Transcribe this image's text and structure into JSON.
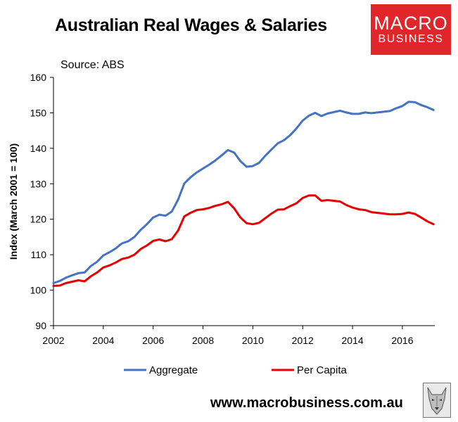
{
  "header": {
    "title": "Australian Real Wages & Salaries",
    "source": "Source: ABS",
    "logo_line1": "MACRO",
    "logo_line2": "BUSINESS"
  },
  "footer": {
    "website": "www.macrobusiness.com.au",
    "mascot_icon": "wolf-icon"
  },
  "colors": {
    "aggregate": "#4472c4",
    "per_capita": "#e60000",
    "logo_bg": "#e0262b"
  },
  "chart_data": {
    "type": "line",
    "title": "Australian Real Wages & Salaries",
    "xlabel": "",
    "ylabel": "Index (March 2001 = 100)",
    "xlim": [
      2002,
      2017.3
    ],
    "ylim": [
      90,
      160
    ],
    "xticks": [
      2002,
      2004,
      2006,
      2008,
      2010,
      2012,
      2014,
      2016
    ],
    "yticks": [
      90,
      100,
      110,
      120,
      130,
      140,
      150,
      160
    ],
    "grid": false,
    "legend_position": "bottom",
    "series": [
      {
        "name": "Aggregate",
        "color": "#4472c4",
        "x": [
          2002.0,
          2002.25,
          2002.5,
          2002.75,
          2003.0,
          2003.25,
          2003.5,
          2003.75,
          2004.0,
          2004.25,
          2004.5,
          2004.75,
          2005.0,
          2005.25,
          2005.5,
          2005.75,
          2006.0,
          2006.25,
          2006.5,
          2006.75,
          2007.0,
          2007.25,
          2007.5,
          2007.75,
          2008.0,
          2008.25,
          2008.5,
          2008.75,
          2009.0,
          2009.25,
          2009.5,
          2009.75,
          2010.0,
          2010.25,
          2010.5,
          2010.75,
          2011.0,
          2011.25,
          2011.5,
          2011.75,
          2012.0,
          2012.25,
          2012.5,
          2012.75,
          2013.0,
          2013.25,
          2013.5,
          2013.75,
          2014.0,
          2014.25,
          2014.5,
          2014.75,
          2015.0,
          2015.25,
          2015.5,
          2015.75,
          2016.0,
          2016.25,
          2016.5,
          2016.75,
          2017.0,
          2017.25
        ],
        "values": [
          102.0,
          102.6,
          103.5,
          104.2,
          104.8,
          105.0,
          106.8,
          108.0,
          109.8,
          110.7,
          111.8,
          113.2,
          113.8,
          115.0,
          117.0,
          118.6,
          120.5,
          121.3,
          121.0,
          122.2,
          125.5,
          130.1,
          131.8,
          133.2,
          134.3,
          135.4,
          136.6,
          138.0,
          139.5,
          138.8,
          136.4,
          134.8,
          135.0,
          135.9,
          137.9,
          139.7,
          141.4,
          142.3,
          143.7,
          145.6,
          147.8,
          149.2,
          150.0,
          149.1,
          149.8,
          150.2,
          150.6,
          150.1,
          149.7,
          149.7,
          150.1,
          149.9,
          150.1,
          150.3,
          150.5,
          151.3,
          151.9,
          153.1,
          153.0,
          152.2,
          151.6,
          150.8
        ]
      },
      {
        "name": "Per Capita",
        "color": "#e60000",
        "x": [
          2002.0,
          2002.25,
          2002.5,
          2002.75,
          2003.0,
          2003.25,
          2003.5,
          2003.75,
          2004.0,
          2004.25,
          2004.5,
          2004.75,
          2005.0,
          2005.25,
          2005.5,
          2005.75,
          2006.0,
          2006.25,
          2006.5,
          2006.75,
          2007.0,
          2007.25,
          2007.5,
          2007.75,
          2008.0,
          2008.25,
          2008.5,
          2008.75,
          2009.0,
          2009.25,
          2009.5,
          2009.75,
          2010.0,
          2010.25,
          2010.5,
          2010.75,
          2011.0,
          2011.25,
          2011.5,
          2011.75,
          2012.0,
          2012.25,
          2012.5,
          2012.75,
          2013.0,
          2013.25,
          2013.5,
          2013.75,
          2014.0,
          2014.25,
          2014.5,
          2014.75,
          2015.0,
          2015.25,
          2015.5,
          2015.75,
          2016.0,
          2016.25,
          2016.5,
          2016.75,
          2017.0,
          2017.25
        ],
        "values": [
          101.2,
          101.3,
          102.0,
          102.4,
          102.8,
          102.5,
          103.9,
          105.0,
          106.4,
          107.0,
          107.8,
          108.8,
          109.2,
          110.0,
          111.6,
          112.6,
          113.9,
          114.3,
          113.8,
          114.4,
          116.8,
          120.8,
          121.8,
          122.6,
          122.8,
          123.2,
          123.8,
          124.2,
          124.9,
          123.1,
          120.5,
          118.9,
          118.6,
          119.0,
          120.3,
          121.6,
          122.7,
          122.8,
          123.7,
          124.5,
          126.0,
          126.7,
          126.7,
          125.2,
          125.4,
          125.2,
          125.0,
          124.0,
          123.3,
          122.8,
          122.6,
          122.0,
          121.8,
          121.6,
          121.4,
          121.4,
          121.5,
          121.9,
          121.5,
          120.5,
          119.4,
          118.6
        ]
      }
    ]
  }
}
